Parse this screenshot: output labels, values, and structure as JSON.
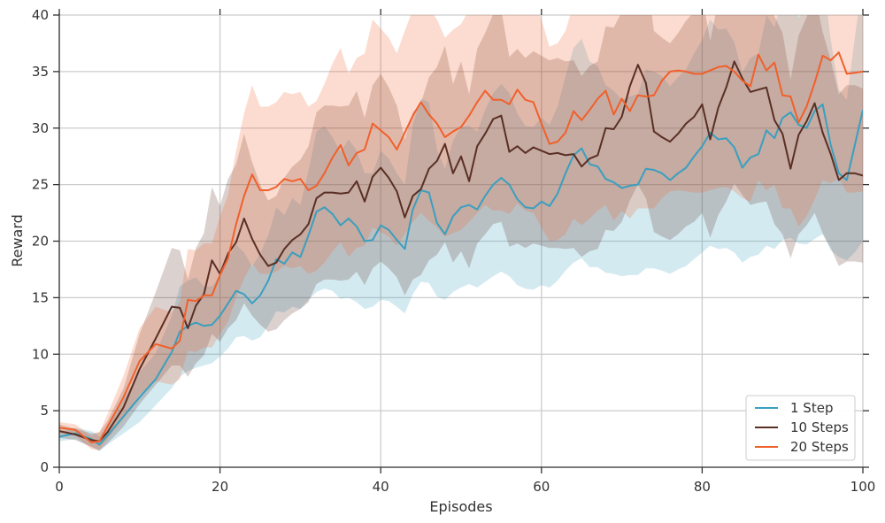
{
  "chart_data": {
    "type": "line",
    "title": "",
    "xlabel": "Episodes",
    "ylabel": "Reward",
    "xlim": [
      0,
      100
    ],
    "ylim": [
      0,
      40
    ],
    "xticks": [
      0,
      20,
      40,
      60,
      80,
      100
    ],
    "yticks": [
      0,
      5,
      10,
      15,
      20,
      25,
      30,
      35,
      40
    ],
    "grid": true,
    "legend_position": "bottom-right",
    "series": [
      {
        "name": "1 Step",
        "color": "#3a9fbf",
        "x": [
          0,
          2,
          4,
          5,
          6,
          8,
          10,
          12,
          14,
          15,
          16,
          17,
          18,
          19,
          20,
          21,
          22,
          23,
          24,
          25,
          26,
          27,
          28,
          29,
          30,
          31,
          32,
          33,
          34,
          35,
          36,
          37,
          38,
          39,
          40,
          41,
          42,
          43,
          44,
          45,
          46,
          47,
          48,
          49,
          50,
          51,
          52,
          53,
          54,
          55,
          56,
          57,
          58,
          59,
          60,
          61,
          62,
          63,
          64,
          65,
          66,
          67,
          68,
          69,
          70,
          71,
          72,
          73,
          74,
          75,
          76,
          77,
          78,
          79,
          80,
          81,
          82,
          83,
          84,
          85,
          86,
          87,
          88,
          89,
          90,
          91,
          92,
          93,
          94,
          95,
          96,
          97,
          98,
          99,
          100
        ],
        "y": [
          2.7,
          3.0,
          2.5,
          2.0,
          2.8,
          4.5,
          6.2,
          7.8,
          10.2,
          12.0,
          12.5,
          12.8,
          12.5,
          12.6,
          13.4,
          14.5,
          15.6,
          15.3,
          14.5,
          15.2,
          16.5,
          18.4,
          18.0,
          19.0,
          18.6,
          20.5,
          22.6,
          23.0,
          22.4,
          21.4,
          22.0,
          21.3,
          20.0,
          20.1,
          21.4,
          21.0,
          20.1,
          19.3,
          22.8,
          24.5,
          24.3,
          21.6,
          20.6,
          22.2,
          23.0,
          23.2,
          22.8,
          24.0,
          25.0,
          25.6,
          25.0,
          23.7,
          23.0,
          22.9,
          23.5,
          23.1,
          24.2,
          26.0,
          27.6,
          28.2,
          26.8,
          26.6,
          25.5,
          25.2,
          24.7,
          24.9,
          25.0,
          26.4,
          26.3,
          26.0,
          25.4,
          26.0,
          26.5,
          27.5,
          28.4,
          29.6,
          29.0,
          29.1,
          28.3,
          26.5,
          27.4,
          27.7,
          29.8,
          29.1,
          30.9,
          31.4,
          30.3,
          30.0,
          31.5,
          32.1,
          28.5,
          26.0,
          25.4,
          28.5,
          31.6
        ],
        "band_lower": [
          2.3,
          2.5,
          1.8,
          1.4,
          2.0,
          3.0,
          4.0,
          5.5,
          7.0,
          8.0,
          8.5,
          8.8,
          9.0,
          9.2,
          9.8,
          10.5,
          11.5,
          11.6,
          11.2,
          11.5,
          12.5,
          13.8,
          13.7,
          14.2,
          14.0,
          14.8,
          15.5,
          15.8,
          15.6,
          14.9,
          15.0,
          14.6,
          14.0,
          14.2,
          14.8,
          14.7,
          14.2,
          13.6,
          15.3,
          16.4,
          16.3,
          15.1,
          14.8,
          15.5,
          15.9,
          16.2,
          15.9,
          16.4,
          16.9,
          17.3,
          16.9,
          16.1,
          15.8,
          15.7,
          16.1,
          15.9,
          16.5,
          17.4,
          18.1,
          18.5,
          17.7,
          17.7,
          17.2,
          17.1,
          16.9,
          17.0,
          17.0,
          17.6,
          17.6,
          17.4,
          17.1,
          17.5,
          17.8,
          18.4,
          19.0,
          19.6,
          19.3,
          19.4,
          19.0,
          18.1,
          18.6,
          18.8,
          19.6,
          19.3,
          20.1,
          20.3,
          19.8,
          19.7,
          20.2,
          20.6,
          19.2,
          18.6,
          18.3,
          19.0,
          20.0
        ],
        "band_upper": [
          3.1,
          3.5,
          3.2,
          2.7,
          3.6,
          6.0,
          8.4,
          10.1,
          13.4,
          16.0,
          16.5,
          16.8,
          16.0,
          16.0,
          17.0,
          18.5,
          19.7,
          19.0,
          17.8,
          18.9,
          20.5,
          23.0,
          22.3,
          23.8,
          23.2,
          26.2,
          29.7,
          30.2,
          29.2,
          27.9,
          29.0,
          28.0,
          26.0,
          26.0,
          28.0,
          27.3,
          26.0,
          25.0,
          30.3,
          32.6,
          32.3,
          28.1,
          26.4,
          28.9,
          30.1,
          30.2,
          29.7,
          31.6,
          33.1,
          33.9,
          33.1,
          31.3,
          30.2,
          30.1,
          30.9,
          30.3,
          31.9,
          34.6,
          37.1,
          37.9,
          35.9,
          35.5,
          33.8,
          33.3,
          32.5,
          32.8,
          33.0,
          35.2,
          35.0,
          34.6,
          33.7,
          34.5,
          35.2,
          36.6,
          37.8,
          39.6,
          38.7,
          38.8,
          37.6,
          34.9,
          36.2,
          36.6,
          40.0,
          38.9,
          41.7,
          42.5,
          40.8,
          40.3,
          42.8,
          43.6,
          37.8,
          33.4,
          32.5,
          38.0,
          43.2
        ]
      },
      {
        "name": "10 Steps",
        "color": "#5a2f24",
        "x": [
          0,
          2,
          4,
          5,
          6,
          8,
          10,
          12,
          14,
          15,
          16,
          17,
          18,
          19,
          20,
          21,
          22,
          23,
          24,
          25,
          26,
          27,
          28,
          29,
          30,
          31,
          32,
          33,
          34,
          35,
          36,
          37,
          38,
          39,
          40,
          41,
          42,
          43,
          44,
          45,
          46,
          47,
          48,
          49,
          50,
          51,
          52,
          53,
          54,
          55,
          56,
          57,
          58,
          59,
          60,
          61,
          62,
          63,
          64,
          65,
          66,
          67,
          68,
          69,
          70,
          71,
          72,
          73,
          74,
          75,
          76,
          77,
          78,
          79,
          80,
          81,
          82,
          83,
          84,
          85,
          86,
          87,
          88,
          89,
          90,
          91,
          92,
          93,
          94,
          95,
          96,
          97,
          98,
          99,
          100
        ],
        "y": [
          3.2,
          2.9,
          2.4,
          2.3,
          3.1,
          5.3,
          8.7,
          11.4,
          14.2,
          14.1,
          12.3,
          14.3,
          15.3,
          18.3,
          17.1,
          18.9,
          19.9,
          22.0,
          20.2,
          18.8,
          17.8,
          18.1,
          19.3,
          20.1,
          20.6,
          21.5,
          23.8,
          24.3,
          24.3,
          24.2,
          24.3,
          25.3,
          23.5,
          25.7,
          26.5,
          25.6,
          24.4,
          22.1,
          24.0,
          24.6,
          26.4,
          27.1,
          28.6,
          26.0,
          27.5,
          25.3,
          28.4,
          29.5,
          30.8,
          31.1,
          27.9,
          28.4,
          27.8,
          28.3,
          28.0,
          27.7,
          27.8,
          27.6,
          27.7,
          26.6,
          27.3,
          27.6,
          30.0,
          29.9,
          31.0,
          33.7,
          35.6,
          34.0,
          29.7,
          29.2,
          28.8,
          29.5,
          30.4,
          31.0,
          32.1,
          29.0,
          31.8,
          33.6,
          35.9,
          34.4,
          33.2,
          33.4,
          33.6,
          30.7,
          29.5,
          26.4,
          29.4,
          30.6,
          32.2,
          29.6,
          27.7,
          25.4,
          26.0,
          26.0,
          25.8
        ],
        "band_lower": [
          2.6,
          2.4,
          1.8,
          1.5,
          2.1,
          3.6,
          5.6,
          7.3,
          9.0,
          9.0,
          8.0,
          9.2,
          9.9,
          11.8,
          11.1,
          12.3,
          13.0,
          14.5,
          13.4,
          12.6,
          12.0,
          12.2,
          13.0,
          13.6,
          14.0,
          14.6,
          16.2,
          16.6,
          16.6,
          16.5,
          16.6,
          17.3,
          16.1,
          17.6,
          18.2,
          17.6,
          16.8,
          15.2,
          16.6,
          17.0,
          18.3,
          18.8,
          19.9,
          18.1,
          19.1,
          17.6,
          19.8,
          20.6,
          21.5,
          21.7,
          19.5,
          19.8,
          19.4,
          19.8,
          19.6,
          19.4,
          19.4,
          19.3,
          19.4,
          18.6,
          19.1,
          19.3,
          21.0,
          20.9,
          21.7,
          23.6,
          25.0,
          23.8,
          20.8,
          20.4,
          20.1,
          20.6,
          21.3,
          21.7,
          22.5,
          20.3,
          22.3,
          23.5,
          25.1,
          24.1,
          23.2,
          23.4,
          23.5,
          21.5,
          20.6,
          18.5,
          20.6,
          21.4,
          22.5,
          20.7,
          19.4,
          17.8,
          18.2,
          18.2,
          18.1
        ],
        "band_upper": [
          3.8,
          3.4,
          3.0,
          3.1,
          4.1,
          7.0,
          11.8,
          15.5,
          19.4,
          19.2,
          16.6,
          19.4,
          20.7,
          24.8,
          23.1,
          25.5,
          26.8,
          29.5,
          27.0,
          25.0,
          23.6,
          24.0,
          25.6,
          26.6,
          27.2,
          28.4,
          31.4,
          32.0,
          32.0,
          31.9,
          32.0,
          33.3,
          30.9,
          33.8,
          34.8,
          33.6,
          32.0,
          29.0,
          31.4,
          32.2,
          34.5,
          35.4,
          37.3,
          33.9,
          35.9,
          33.0,
          37.0,
          38.4,
          40.1,
          40.5,
          36.3,
          37.0,
          36.2,
          36.8,
          36.4,
          36.0,
          36.2,
          35.9,
          36.0,
          34.6,
          35.5,
          35.9,
          39.0,
          38.9,
          40.3,
          43.8,
          46.2,
          44.2,
          38.6,
          38.0,
          37.5,
          38.4,
          39.5,
          40.3,
          41.7,
          37.7,
          41.3,
          43.7,
          46.7,
          44.7,
          43.2,
          43.4,
          43.7,
          39.9,
          38.4,
          34.3,
          38.2,
          39.8,
          41.9,
          38.5,
          36.0,
          33.0,
          33.8,
          33.8,
          33.5
        ]
      },
      {
        "name": "20 Steps",
        "color": "#f0602b",
        "x": [
          0,
          2,
          4,
          5,
          6,
          8,
          10,
          12,
          14,
          15,
          16,
          17,
          18,
          19,
          20,
          21,
          22,
          23,
          24,
          25,
          26,
          27,
          28,
          29,
          30,
          31,
          32,
          33,
          34,
          35,
          36,
          37,
          38,
          39,
          40,
          41,
          42,
          43,
          44,
          45,
          46,
          47,
          48,
          49,
          50,
          51,
          52,
          53,
          54,
          55,
          56,
          57,
          58,
          59,
          60,
          61,
          62,
          63,
          64,
          65,
          66,
          67,
          68,
          69,
          70,
          71,
          72,
          73,
          74,
          75,
          76,
          77,
          78,
          79,
          80,
          81,
          82,
          83,
          84,
          85,
          86,
          87,
          88,
          89,
          90,
          91,
          92,
          93,
          94,
          95,
          96,
          97,
          98,
          99,
          100
        ],
        "y": [
          3.5,
          3.3,
          2.2,
          2.3,
          3.6,
          6.2,
          9.4,
          10.9,
          10.5,
          11.2,
          14.8,
          14.7,
          15.2,
          15.2,
          17.0,
          18.5,
          21.5,
          24.0,
          25.9,
          24.5,
          24.5,
          24.8,
          25.5,
          25.3,
          25.5,
          24.5,
          24.9,
          26.0,
          27.4,
          28.5,
          26.7,
          27.8,
          28.1,
          30.4,
          29.8,
          29.2,
          28.1,
          29.6,
          31.1,
          32.3,
          31.2,
          30.4,
          29.2,
          29.7,
          30.1,
          31.1,
          32.3,
          33.3,
          32.5,
          32.5,
          32.1,
          33.4,
          32.5,
          32.3,
          30.4,
          28.6,
          28.8,
          29.6,
          31.5,
          30.7,
          31.6,
          32.6,
          33.3,
          31.2,
          32.6,
          31.5,
          32.9,
          32.8,
          32.9,
          34.2,
          35.0,
          35.1,
          35.0,
          34.8,
          34.8,
          35.1,
          35.4,
          35.5,
          35.0,
          34.2,
          33.7,
          36.5,
          35.1,
          35.8,
          32.9,
          32.8,
          30.5,
          31.9,
          34.0,
          36.4,
          36.0,
          36.7,
          34.8,
          34.9,
          35.0
        ],
        "band_lower": [
          3.0,
          2.8,
          1.6,
          1.5,
          2.5,
          4.3,
          6.5,
          7.6,
          7.3,
          7.8,
          10.3,
          10.2,
          10.6,
          10.6,
          11.8,
          12.9,
          15.0,
          16.7,
          18.0,
          17.1,
          17.1,
          17.3,
          17.8,
          17.6,
          17.8,
          17.1,
          17.4,
          18.1,
          19.1,
          19.9,
          18.6,
          19.4,
          19.6,
          21.2,
          20.8,
          20.4,
          19.6,
          20.6,
          21.7,
          22.5,
          21.8,
          21.2,
          20.4,
          20.7,
          21.0,
          21.7,
          22.5,
          23.2,
          22.7,
          22.7,
          22.4,
          23.3,
          22.7,
          22.5,
          21.2,
          20.0,
          20.1,
          20.6,
          22.0,
          21.4,
          22.0,
          22.7,
          23.2,
          21.8,
          22.7,
          22.0,
          22.9,
          22.9,
          22.9,
          23.8,
          24.4,
          24.5,
          24.4,
          24.3,
          24.3,
          24.5,
          24.7,
          24.8,
          24.4,
          23.8,
          23.5,
          25.4,
          24.5,
          25.0,
          22.9,
          22.9,
          21.3,
          22.2,
          23.7,
          25.4,
          25.1,
          25.6,
          24.3,
          24.3,
          24.4
        ],
        "band_upper": [
          4.0,
          3.8,
          2.8,
          3.1,
          4.7,
          8.1,
          12.3,
          14.2,
          13.7,
          14.6,
          19.3,
          19.2,
          19.8,
          19.8,
          22.2,
          24.1,
          28.0,
          31.3,
          33.8,
          31.9,
          31.9,
          32.3,
          33.2,
          33.0,
          33.2,
          31.9,
          32.4,
          33.9,
          35.7,
          37.1,
          34.8,
          36.2,
          36.6,
          39.6,
          38.8,
          38.0,
          36.6,
          38.6,
          40.5,
          42.1,
          40.6,
          39.6,
          38.0,
          38.7,
          39.2,
          40.5,
          42.1,
          43.4,
          42.3,
          42.3,
          41.8,
          43.5,
          42.3,
          42.1,
          39.6,
          37.2,
          37.5,
          38.6,
          41.0,
          40.0,
          41.2,
          42.5,
          43.4,
          40.6,
          42.5,
          41.0,
          42.9,
          42.7,
          42.9,
          44.6,
          45.6,
          45.7,
          45.6,
          45.3,
          45.3,
          45.7,
          46.1,
          46.2,
          45.6,
          44.6,
          43.9,
          47.6,
          45.7,
          46.6,
          42.9,
          42.7,
          39.7,
          41.6,
          44.3,
          47.4,
          46.9,
          47.8,
          45.3,
          45.5,
          45.6
        ]
      }
    ]
  }
}
